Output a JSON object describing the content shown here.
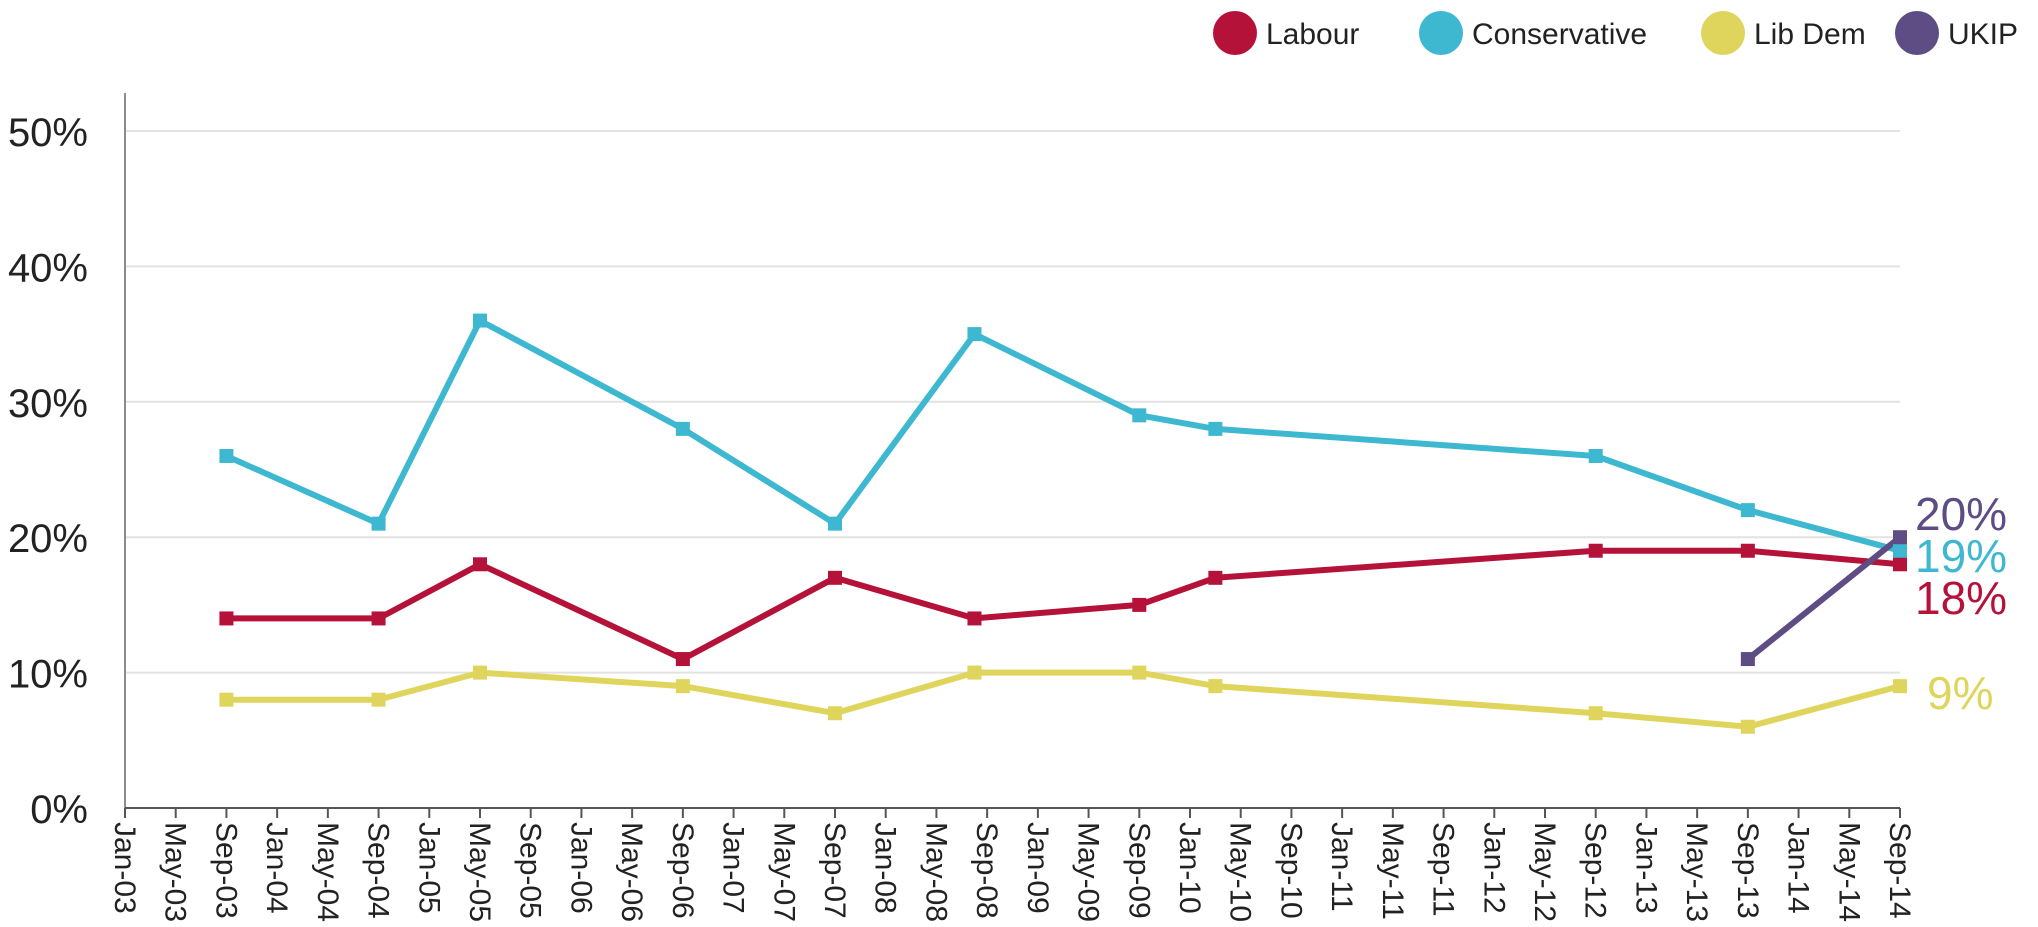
{
  "chart_data": {
    "type": "line",
    "x_ticks": [
      "Jan-03",
      "May-03",
      "Sep-03",
      "Jan-04",
      "May-04",
      "Sep-04",
      "Jan-05",
      "May-05",
      "Sep-05",
      "Jan-06",
      "May-06",
      "Sep-06",
      "Jan-07",
      "May-07",
      "Sep-07",
      "Jan-08",
      "May-08",
      "Sep-08",
      "Jan-09",
      "May-09",
      "Sep-09",
      "Jan-10",
      "May-10",
      "Sep-10",
      "Jan-11",
      "May-11",
      "Sep-11",
      "Jan-12",
      "May-12",
      "Sep-12",
      "Jan-13",
      "May-13",
      "Sep-13",
      "Jan-14",
      "May-14",
      "Sep-14"
    ],
    "y_ticks": [
      "0%",
      "10%",
      "20%",
      "30%",
      "40%",
      "50%"
    ],
    "ylim": [
      0,
      50
    ],
    "grid": true,
    "legend_position": "top-right",
    "series": [
      {
        "name": "Labour",
        "color": "#b5123a",
        "points": [
          {
            "x": "Sep-03",
            "y": 14
          },
          {
            "x": "Sep-04",
            "y": 14
          },
          {
            "x": "May-05",
            "y": 18
          },
          {
            "x": "Sep-06",
            "y": 11
          },
          {
            "x": "Sep-07",
            "y": 17
          },
          {
            "x": "Aug-08",
            "y": 14
          },
          {
            "x": "Sep-09",
            "y": 15
          },
          {
            "x": "Mar-10",
            "y": 17
          },
          {
            "x": "Sep-12",
            "y": 19
          },
          {
            "x": "Sep-13",
            "y": 19
          },
          {
            "x": "Sep-14",
            "y": 18
          }
        ],
        "end_label": "18%"
      },
      {
        "name": "Conservative",
        "color": "#3db8d0",
        "points": [
          {
            "x": "Sep-03",
            "y": 26
          },
          {
            "x": "Sep-04",
            "y": 21
          },
          {
            "x": "May-05",
            "y": 36
          },
          {
            "x": "Sep-06",
            "y": 28
          },
          {
            "x": "Sep-07",
            "y": 21
          },
          {
            "x": "Aug-08",
            "y": 35
          },
          {
            "x": "Sep-09",
            "y": 29
          },
          {
            "x": "Mar-10",
            "y": 28
          },
          {
            "x": "Sep-12",
            "y": 26
          },
          {
            "x": "Sep-13",
            "y": 22
          },
          {
            "x": "Sep-14",
            "y": 19
          }
        ],
        "end_label": "19%"
      },
      {
        "name": "Lib Dem",
        "color": "#e0d55c",
        "points": [
          {
            "x": "Sep-03",
            "y": 8
          },
          {
            "x": "Sep-04",
            "y": 8
          },
          {
            "x": "May-05",
            "y": 10
          },
          {
            "x": "Sep-06",
            "y": 9
          },
          {
            "x": "Sep-07",
            "y": 7
          },
          {
            "x": "Aug-08",
            "y": 10
          },
          {
            "x": "Sep-09",
            "y": 10
          },
          {
            "x": "Mar-10",
            "y": 9
          },
          {
            "x": "Sep-12",
            "y": 7
          },
          {
            "x": "Sep-13",
            "y": 6
          },
          {
            "x": "Sep-14",
            "y": 9
          }
        ],
        "end_label": "9%"
      },
      {
        "name": "UKIP",
        "color": "#5e4c84",
        "points": [
          {
            "x": "Sep-13",
            "y": 11
          },
          {
            "x": "Sep-14",
            "y": 20
          }
        ],
        "end_label": "20%"
      }
    ]
  }
}
